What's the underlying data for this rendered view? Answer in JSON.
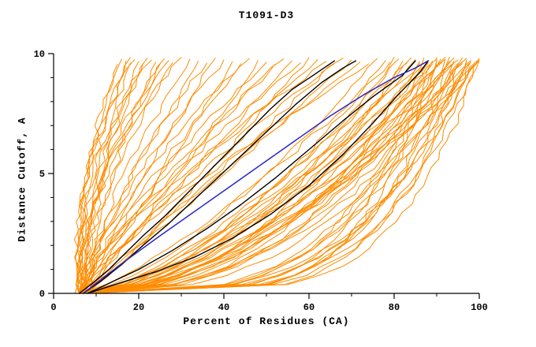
{
  "chart_data": {
    "type": "line",
    "title": "T1091-D3",
    "xlabel": "Percent of Residues (CA)",
    "ylabel": "Distance Cutoff, A",
    "xlim": [
      0,
      100
    ],
    "ylim": [
      0,
      10
    ],
    "x_major_ticks": [
      0,
      20,
      40,
      60,
      80,
      100
    ],
    "x_minor_ticks": [
      10,
      30,
      50,
      70,
      90
    ],
    "y_major_ticks": [
      0,
      5,
      10
    ],
    "y_minor_ticks": [
      1,
      2,
      3,
      4,
      6,
      7,
      8,
      9
    ],
    "grid": false,
    "legend_position": "none",
    "colors": {
      "model_orange": "#ff8c00",
      "reference_black": "#000000",
      "highlight_blue": "#2b25c8"
    },
    "curve_top_y": 9.7,
    "orange_param_format": [
      "x_start_at_y0",
      "x_when_reaching_top",
      "shape_exponent"
    ],
    "orange_curves": [
      [
        6,
        15,
        2.2
      ],
      [
        5,
        16,
        1.9
      ],
      [
        6,
        17,
        2.4
      ],
      [
        7,
        18,
        1.7
      ],
      [
        6,
        18,
        2.0
      ],
      [
        5,
        19,
        2.3
      ],
      [
        7,
        20,
        1.6
      ],
      [
        6,
        21,
        2.1
      ],
      [
        7,
        22,
        1.8
      ],
      [
        6,
        23,
        2.4
      ],
      [
        8,
        24,
        1.5
      ],
      [
        7,
        25,
        2.0
      ],
      [
        6,
        26,
        1.7
      ],
      [
        8,
        27,
        2.2
      ],
      [
        7,
        28,
        1.6
      ],
      [
        6,
        30,
        1.9
      ],
      [
        7,
        32,
        1.4
      ],
      [
        6,
        34,
        1.2
      ],
      [
        8,
        36,
        1.5
      ],
      [
        7,
        38,
        1.1
      ],
      [
        6,
        40,
        1.3
      ],
      [
        8,
        42,
        1.0
      ],
      [
        7,
        44,
        1.4
      ],
      [
        6,
        46,
        1.2
      ],
      [
        8,
        48,
        0.95
      ],
      [
        7,
        50,
        1.3
      ],
      [
        6,
        52,
        1.1
      ],
      [
        8,
        54,
        1.35
      ],
      [
        7,
        56,
        1.0
      ],
      [
        6,
        58,
        1.25
      ],
      [
        8,
        60,
        0.9
      ],
      [
        7,
        62,
        1.15
      ],
      [
        6,
        64,
        1.3
      ],
      [
        8,
        66,
        1.0
      ],
      [
        7,
        68,
        1.2
      ],
      [
        6,
        70,
        0.95
      ],
      [
        8,
        72,
        1.1
      ],
      [
        7,
        74,
        1.25
      ],
      [
        7,
        76,
        0.7
      ],
      [
        8,
        78,
        0.6
      ],
      [
        6,
        79,
        0.75
      ],
      [
        7,
        80,
        0.5
      ],
      [
        8,
        81,
        0.65
      ],
      [
        6,
        82,
        0.45
      ],
      [
        7,
        83,
        0.7
      ],
      [
        8,
        84,
        0.55
      ],
      [
        6,
        85,
        0.6
      ],
      [
        7,
        86,
        0.4
      ],
      [
        8,
        86,
        0.7
      ],
      [
        6,
        87,
        0.5
      ],
      [
        7,
        88,
        0.62
      ],
      [
        8,
        88,
        0.45
      ],
      [
        6,
        89,
        0.68
      ],
      [
        7,
        90,
        0.52
      ],
      [
        8,
        90,
        0.4
      ],
      [
        6,
        91,
        0.6
      ],
      [
        7,
        92,
        0.48
      ],
      [
        8,
        92,
        0.66
      ],
      [
        6,
        93,
        0.42
      ],
      [
        7,
        94,
        0.58
      ],
      [
        8,
        94,
        0.5
      ],
      [
        6,
        95,
        0.64
      ],
      [
        7,
        96,
        0.44
      ],
      [
        8,
        96,
        0.56
      ],
      [
        6,
        97,
        0.5
      ],
      [
        7,
        98,
        0.62
      ],
      [
        8,
        98,
        0.4
      ],
      [
        6,
        99,
        0.55
      ],
      [
        7,
        100,
        0.45
      ],
      [
        8,
        100,
        0.6
      ],
      [
        6,
        88,
        0.25
      ],
      [
        7,
        90,
        0.2
      ],
      [
        8,
        92,
        0.28
      ],
      [
        6,
        94,
        0.22
      ],
      [
        7,
        95,
        0.3
      ],
      [
        8,
        96,
        0.2
      ],
      [
        6,
        97,
        0.26
      ],
      [
        7,
        98,
        0.22
      ],
      [
        8,
        99,
        0.3
      ],
      [
        6,
        100,
        0.24
      ],
      [
        7,
        100,
        0.2
      ],
      [
        8,
        97,
        0.27
      ],
      [
        6,
        93,
        0.21
      ],
      [
        7,
        91,
        0.29
      ],
      [
        8,
        89,
        0.23
      ]
    ],
    "black_curves": [
      [
        [
          6,
          0
        ],
        [
          9,
          0.4
        ],
        [
          13,
          1.0
        ],
        [
          17,
          1.7
        ],
        [
          21,
          2.4
        ],
        [
          26,
          3.2
        ],
        [
          31,
          4.1
        ],
        [
          36,
          5.0
        ],
        [
          41,
          5.9
        ],
        [
          46,
          6.8
        ],
        [
          51,
          7.7
        ],
        [
          56,
          8.5
        ],
        [
          61,
          9.1
        ],
        [
          66,
          9.7
        ]
      ],
      [
        [
          7,
          0
        ],
        [
          11,
          0.5
        ],
        [
          16,
          1.2
        ],
        [
          21,
          2.0
        ],
        [
          27,
          2.9
        ],
        [
          33,
          3.9
        ],
        [
          39,
          4.9
        ],
        [
          45,
          5.9
        ],
        [
          51,
          6.9
        ],
        [
          57,
          7.9
        ],
        [
          63,
          8.8
        ],
        [
          68,
          9.4
        ],
        [
          71,
          9.7
        ]
      ],
      [
        [
          8,
          0
        ],
        [
          14,
          0.5
        ],
        [
          20,
          1.0
        ],
        [
          28,
          1.8
        ],
        [
          36,
          2.7
        ],
        [
          44,
          3.7
        ],
        [
          52,
          4.8
        ],
        [
          60,
          6.0
        ],
        [
          68,
          7.2
        ],
        [
          75,
          8.2
        ],
        [
          82,
          9.1
        ],
        [
          85,
          9.7
        ]
      ],
      [
        [
          8,
          0
        ],
        [
          15,
          0.4
        ],
        [
          24,
          0.9
        ],
        [
          33,
          1.5
        ],
        [
          42,
          2.3
        ],
        [
          51,
          3.3
        ],
        [
          60,
          4.5
        ],
        [
          68,
          5.8
        ],
        [
          75,
          7.1
        ],
        [
          81,
          8.3
        ],
        [
          86,
          9.2
        ],
        [
          88,
          9.7
        ]
      ]
    ],
    "blue_curve": [
      [
        7,
        0
      ],
      [
        12,
        0.7
      ],
      [
        18,
        1.5
      ],
      [
        25,
        2.4
      ],
      [
        33,
        3.4
      ],
      [
        41,
        4.4
      ],
      [
        49,
        5.4
      ],
      [
        57,
        6.4
      ],
      [
        65,
        7.4
      ],
      [
        73,
        8.3
      ],
      [
        80,
        9.0
      ],
      [
        85,
        9.4
      ],
      [
        88,
        9.7
      ]
    ]
  }
}
